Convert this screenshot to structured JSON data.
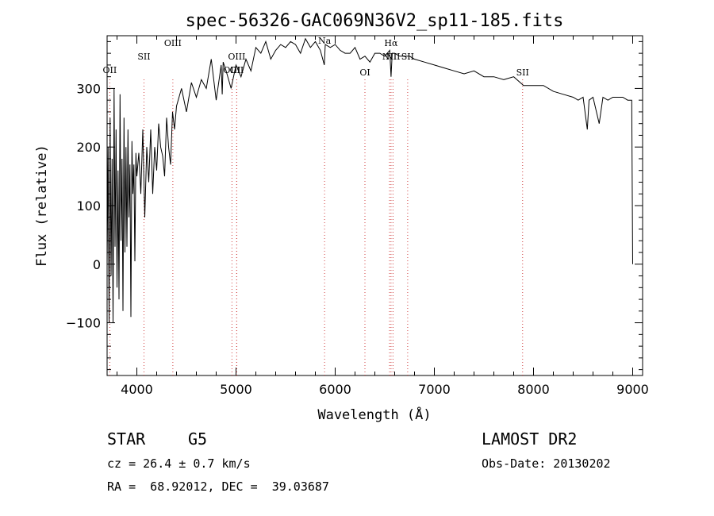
{
  "chart_data": {
    "type": "line",
    "title": "spec-56326-GAC069N36V2_sp11-185.fits",
    "xlabel": "Wavelength (Å)",
    "ylabel": "Flux (relative)",
    "xlim": [
      3700,
      9100
    ],
    "ylim": [
      -190,
      390
    ],
    "x_ticks": [
      4000,
      5000,
      6000,
      7000,
      8000,
      9000
    ],
    "y_ticks": [
      -100,
      0,
      100,
      200,
      300
    ],
    "grid": false,
    "series": [
      {
        "x": [
          3700,
          3710,
          3720,
          3730,
          3740,
          3750,
          3760,
          3770,
          3780,
          3790,
          3800,
          3810,
          3820,
          3830,
          3840,
          3850,
          3860,
          3870,
          3880,
          3890,
          3900,
          3910,
          3920,
          3930,
          3940,
          3950,
          3960,
          3970,
          3980,
          3990,
          4000,
          4020,
          4040,
          4060,
          4080,
          4100,
          4120,
          4140,
          4160,
          4180,
          4200,
          4220,
          4240,
          4260,
          4280,
          4300,
          4320,
          4340,
          4360,
          4380,
          4400,
          4450,
          4500,
          4550,
          4600,
          4650,
          4700,
          4750,
          4800,
          4850,
          4861,
          4870,
          4900,
          4950,
          5000,
          5050,
          5100,
          5150,
          5200,
          5250,
          5300,
          5350,
          5400,
          5450,
          5500,
          5550,
          5600,
          5650,
          5700,
          5750,
          5800,
          5850,
          5890,
          5900,
          5950,
          6000,
          6050,
          6100,
          6150,
          6200,
          6250,
          6300,
          6350,
          6400,
          6450,
          6500,
          6550,
          6563,
          6575,
          6600,
          6650,
          6700,
          6750,
          6800,
          6900,
          7000,
          7100,
          7200,
          7300,
          7400,
          7500,
          7600,
          7700,
          7800,
          7900,
          8000,
          8100,
          8200,
          8300,
          8400,
          8450,
          8500,
          8542,
          8560,
          8600,
          8662,
          8700,
          8750,
          8800,
          8850,
          8900,
          8950,
          8990,
          9000
        ],
        "y": [
          0,
          200,
          -100,
          250,
          -20,
          180,
          -100,
          300,
          30,
          230,
          -40,
          160,
          -60,
          290,
          40,
          180,
          -80,
          250,
          20,
          200,
          30,
          230,
          80,
          170,
          -90,
          210,
          120,
          170,
          5,
          190,
          150,
          190,
          120,
          230,
          80,
          200,
          140,
          230,
          120,
          200,
          160,
          240,
          200,
          185,
          150,
          250,
          200,
          170,
          260,
          230,
          270,
          300,
          260,
          310,
          285,
          315,
          300,
          350,
          280,
          340,
          290,
          345,
          330,
          300,
          340,
          320,
          350,
          330,
          370,
          360,
          380,
          350,
          365,
          375,
          370,
          380,
          375,
          360,
          385,
          370,
          380,
          365,
          340,
          375,
          370,
          375,
          365,
          360,
          360,
          370,
          350,
          355,
          345,
          360,
          360,
          355,
          365,
          320,
          360,
          360,
          355,
          355,
          355,
          350,
          345,
          340,
          335,
          330,
          325,
          330,
          320,
          320,
          315,
          320,
          305,
          305,
          305,
          295,
          290,
          285,
          280,
          285,
          230,
          280,
          285,
          240,
          285,
          280,
          285,
          285,
          285,
          280,
          280,
          0
        ]
      }
    ],
    "lines": [
      {
        "wavelength": 3727,
        "label": "OII"
      },
      {
        "wavelength": 4072,
        "label": "SII"
      },
      {
        "wavelength": 4363,
        "label": "OIII"
      },
      {
        "wavelength": 4959,
        "label": "OIII"
      },
      {
        "wavelength": 5007,
        "label": "OIII"
      },
      {
        "wavelength": 5007,
        "label": "OII"
      },
      {
        "wavelength": 5893,
        "label": "Na"
      },
      {
        "wavelength": 6300,
        "label": "OI"
      },
      {
        "wavelength": 6548,
        "label": "NII"
      },
      {
        "wavelength": 6563,
        "label": "Hα"
      },
      {
        "wavelength": 6583,
        "label": "NII"
      },
      {
        "wavelength": 6731,
        "label": "SII"
      },
      {
        "wavelength": 7890,
        "label": "SII"
      }
    ]
  },
  "info": {
    "class_label": "STAR",
    "subclass": "G5",
    "survey": "LAMOST DR2",
    "cz_line": "cz = 26.4 ± 0.7 km/s",
    "obs_line": "Obs-Date: 20130202",
    "coords_line": "RA =  68.92012, DEC =  39.03687"
  }
}
